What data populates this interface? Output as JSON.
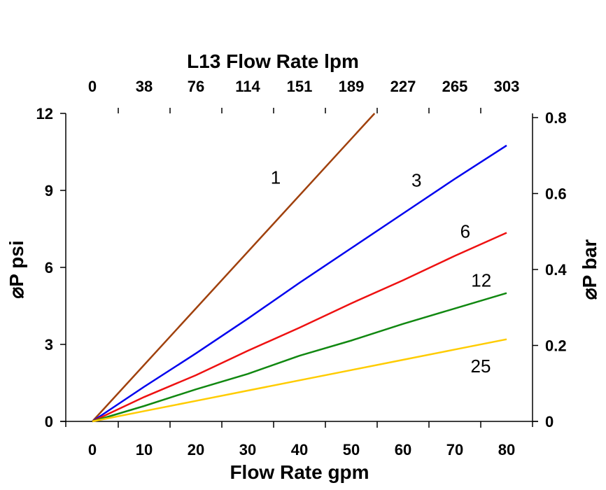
{
  "chart_data": {
    "type": "line",
    "title": "L13  Flow Rate lpm",
    "xlabel": "Flow Rate gpm",
    "ylabel": "⌀P psi",
    "ylabel_right": "⌀P bar",
    "xlim": [
      -5,
      85
    ],
    "ylim": [
      0,
      12
    ],
    "ylim_right": [
      0,
      0.811
    ],
    "x_ticks": [
      0,
      10,
      20,
      30,
      40,
      50,
      60,
      70,
      80
    ],
    "y_ticks": [
      0,
      3,
      6,
      9,
      12
    ],
    "y_right_ticks": [
      "0",
      "0.2",
      "0.4",
      "0.6",
      "0.8"
    ],
    "y_right_tick_values": [
      0,
      0.2,
      0.4,
      0.6,
      0.8
    ],
    "x_top_ticks": [
      "0",
      "38",
      "76",
      "114",
      "151",
      "189",
      "227",
      "265",
      "303"
    ],
    "grid": false,
    "series": [
      {
        "name": "1",
        "color": "#a0410d",
        "x": [
          0,
          54.5
        ],
        "y": [
          0,
          12
        ],
        "label_at": [
          35.4,
          9.5
        ]
      },
      {
        "name": "3",
        "color": "#0000ee",
        "x": [
          0,
          10,
          20,
          30,
          40,
          50,
          60,
          70,
          80
        ],
        "y": [
          0,
          1.35,
          2.65,
          4.0,
          5.4,
          6.75,
          8.1,
          9.45,
          10.75
        ],
        "label_at": [
          62.6,
          9.4
        ]
      },
      {
        "name": "6",
        "color": "#ee1111",
        "x": [
          0,
          10,
          20,
          30,
          40,
          50,
          60,
          70,
          80
        ],
        "y": [
          0,
          0.95,
          1.8,
          2.75,
          3.65,
          4.6,
          5.5,
          6.45,
          7.35
        ],
        "label_at": [
          72,
          7.4
        ]
      },
      {
        "name": "12",
        "color": "#118811",
        "x": [
          0,
          10,
          20,
          30,
          40,
          50,
          60,
          70,
          80
        ],
        "y": [
          0,
          0.6,
          1.25,
          1.85,
          2.56,
          3.15,
          3.8,
          4.4,
          5.0
        ],
        "label_at": [
          75.1,
          5.5
        ]
      },
      {
        "name": "25",
        "color": "#ffcc00",
        "x": [
          0,
          10,
          20,
          30,
          40,
          50,
          60,
          70,
          80
        ],
        "y": [
          0,
          0.4,
          0.8,
          1.2,
          1.6,
          2.0,
          2.4,
          2.8,
          3.2
        ],
        "label_at": [
          75,
          2.15
        ]
      }
    ]
  }
}
